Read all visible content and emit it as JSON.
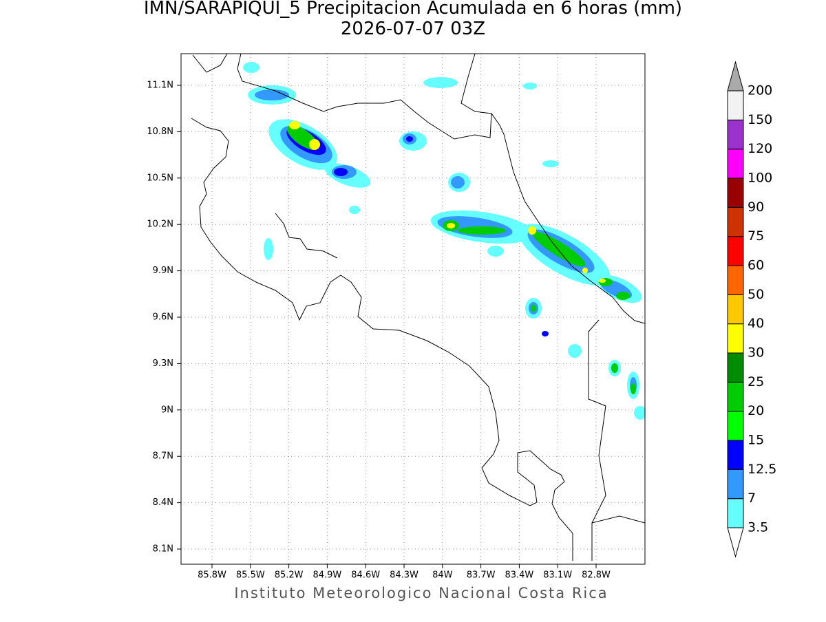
{
  "header": {
    "title": "IMN/SARAPIQUI_5 Precipitacion Acumulada en 6 horas (mm)",
    "subtitle": "2026-07-07 03Z"
  },
  "map": {
    "x_ticks": [
      "85.8W",
      "85.5W",
      "85.2W",
      "84.9W",
      "84.6W",
      "84.3W",
      "84W",
      "83.7W",
      "83.4W",
      "83.1W",
      "82.8W"
    ],
    "y_ticks": [
      "11.1N",
      "10.8N",
      "10.5N",
      "10.2N",
      "9.9N",
      "9.6N",
      "9.3N",
      "9N",
      "8.7N",
      "8.4N",
      "8.1N"
    ]
  },
  "colorbar": {
    "levels": [
      3.5,
      7,
      12.5,
      15,
      20,
      25,
      30,
      40,
      50,
      60,
      75,
      90,
      100,
      120,
      150,
      200
    ],
    "colors": [
      "#66ffff",
      "#3399ff",
      "#0000ff",
      "#00ff00",
      "#00cc00",
      "#008c00",
      "#ffff00",
      "#ffc800",
      "#ff6600",
      "#ff0000",
      "#cc3300",
      "#990000",
      "#ff00ff",
      "#9933cc",
      "#f2f2f2"
    ],
    "over_color": "#aaaaaa",
    "under_color": "#ffffff"
  },
  "footer": "Instituto Meteorologico Nacional Costa Rica"
}
